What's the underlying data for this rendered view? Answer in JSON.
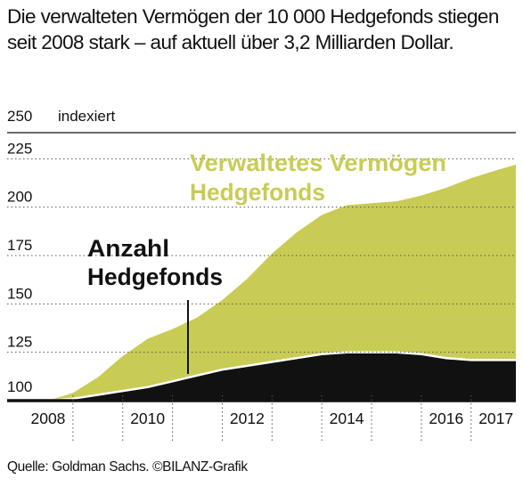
{
  "title_lines": [
    "Die verwalteten Vermögen der 10 000 Hedgefonds stiegen",
    "seit 2008 stark – auf aktuell über 3,2 Milliarden Dollar."
  ],
  "source": "Quelle: Goldman Sachs. ©BILANZ-Grafik",
  "colors": {
    "assets": "#c8cc55",
    "funds": "#111111",
    "grid": "#555555"
  },
  "chart_data": {
    "type": "area",
    "ylabel": "indexiert",
    "ylim": [
      100,
      250
    ],
    "yticks": [
      "100",
      "125",
      "150",
      "175",
      "200",
      "225",
      "250"
    ],
    "xlim": [
      2007.75,
      2017.4
    ],
    "xticks": [
      {
        "value": 2008,
        "label": "2008"
      },
      {
        "value": 2010,
        "label": "2010"
      },
      {
        "value": 2012,
        "label": "2012"
      },
      {
        "value": 2014,
        "label": "2014"
      },
      {
        "value": 2016,
        "label": "2016"
      },
      {
        "value": 2017,
        "label": "2017"
      }
    ],
    "series": [
      {
        "name": "Verwaltetes Vermögen Hedgefonds",
        "name_lines": [
          "Verwaltetes Vermögen",
          "Hedgefonds"
        ],
        "points": [
          [
            2008.0,
            100
          ],
          [
            2008.5,
            104
          ],
          [
            2009.0,
            112
          ],
          [
            2009.5,
            123
          ],
          [
            2010.0,
            132
          ],
          [
            2010.5,
            137
          ],
          [
            2011.0,
            143
          ],
          [
            2011.5,
            152
          ],
          [
            2012.0,
            163
          ],
          [
            2012.5,
            176
          ],
          [
            2013.0,
            187
          ],
          [
            2013.5,
            196
          ],
          [
            2014.0,
            201
          ],
          [
            2014.5,
            202
          ],
          [
            2015.0,
            203
          ],
          [
            2015.5,
            206
          ],
          [
            2016.0,
            210
          ],
          [
            2016.5,
            215
          ],
          [
            2017.0,
            219
          ],
          [
            2017.4,
            222
          ]
        ]
      },
      {
        "name": "Anzahl Hedgefonds",
        "name_lines": [
          "Anzahl",
          "Hedgefonds"
        ],
        "points": [
          [
            2008.0,
            100
          ],
          [
            2008.5,
            101
          ],
          [
            2009.0,
            103
          ],
          [
            2009.5,
            105
          ],
          [
            2010.0,
            107
          ],
          [
            2010.5,
            110
          ],
          [
            2011.0,
            113
          ],
          [
            2011.5,
            116
          ],
          [
            2012.0,
            118
          ],
          [
            2012.5,
            120
          ],
          [
            2013.0,
            122
          ],
          [
            2013.5,
            124
          ],
          [
            2014.0,
            125
          ],
          [
            2014.5,
            125
          ],
          [
            2015.0,
            125
          ],
          [
            2015.5,
            124
          ],
          [
            2016.0,
            122
          ],
          [
            2016.5,
            121
          ],
          [
            2017.0,
            121
          ],
          [
            2017.4,
            121
          ]
        ]
      }
    ]
  }
}
